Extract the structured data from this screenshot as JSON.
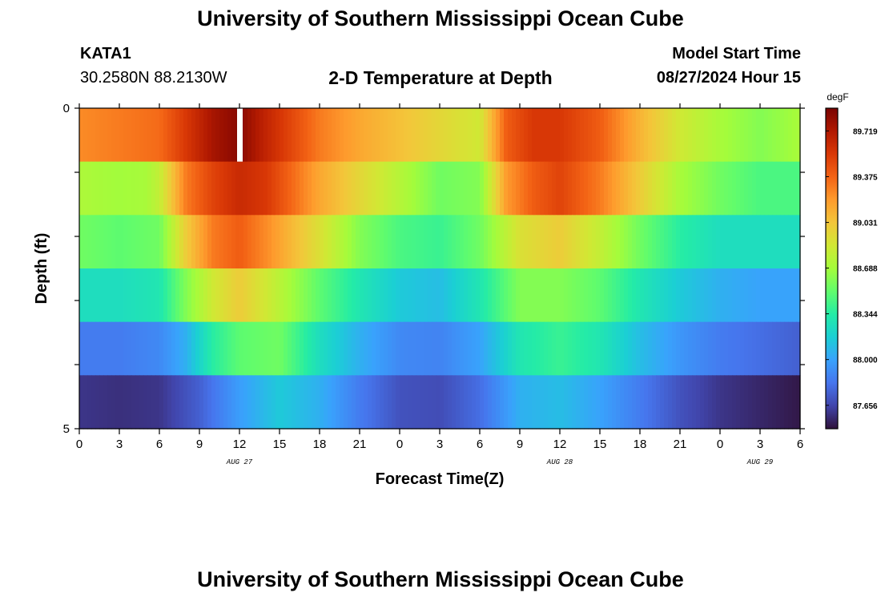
{
  "header": {
    "title": "University of Southern Mississippi Ocean Cube",
    "station": "KATA1",
    "coordinates": "30.2580N  88.2130W",
    "subtitle": "2-D Temperature at Depth",
    "start_label": "Model Start Time",
    "start_value": "08/27/2024 Hour 15"
  },
  "footer": {
    "title": "University of Southern Mississippi Ocean Cube"
  },
  "chart_data": {
    "type": "heatmap",
    "title": "2-D Temperature at Depth",
    "xlabel": "Forecast Time(Z)",
    "ylabel": "Depth (ft)",
    "x_range_hours": [
      0,
      54
    ],
    "y_range": [
      0,
      5
    ],
    "x_tick_labels": [
      "0",
      "3",
      "6",
      "9",
      "12",
      "15",
      "18",
      "21",
      "0",
      "3",
      "6",
      "9",
      "12",
      "15",
      "18",
      "21",
      "0",
      "3",
      "6"
    ],
    "y_tick_labels": [
      "0",
      "5"
    ],
    "date_labels": [
      {
        "label": "AUG 27",
        "hour": 12
      },
      {
        "label": "AUG 28",
        "hour": 36
      },
      {
        "label": "AUG 29",
        "hour": 51
      }
    ],
    "colorbar": {
      "unit": "degF",
      "min": 87.48,
      "max": 89.89,
      "tick_values": [
        "89.719",
        "89.375",
        "89.031",
        "88.688",
        "88.344",
        "88.000",
        "87.656"
      ],
      "colors": [
        "#30123b",
        "#4145ab",
        "#4675ed",
        "#39a2fc",
        "#1bcfd4",
        "#24eca6",
        "#61fc6c",
        "#a4fc3b",
        "#d1e834",
        "#f3c63a",
        "#fe9b2d",
        "#f36315",
        "#d93806",
        "#b11901",
        "#7a0402"
      ]
    },
    "missing_cell": {
      "row": 0,
      "hour": 12
    },
    "rows": [
      {
        "depth_index": 0,
        "keyframes": [
          [
            0,
            89.25
          ],
          [
            3,
            89.3
          ],
          [
            6,
            89.35
          ],
          [
            8,
            89.55
          ],
          [
            10,
            89.75
          ],
          [
            12,
            89.85
          ],
          [
            14,
            89.65
          ],
          [
            18,
            89.3
          ],
          [
            21,
            89.15
          ],
          [
            24,
            89.05
          ],
          [
            27,
            88.95
          ],
          [
            30,
            88.85
          ],
          [
            32,
            89.4
          ],
          [
            34,
            89.55
          ],
          [
            36,
            89.55
          ],
          [
            39,
            89.4
          ],
          [
            42,
            89.1
          ],
          [
            45,
            88.85
          ],
          [
            48,
            88.7
          ],
          [
            51,
            88.6
          ],
          [
            54,
            88.7
          ]
        ]
      },
      {
        "depth_index": 1,
        "keyframes": [
          [
            0,
            88.72
          ],
          [
            3,
            88.68
          ],
          [
            5,
            88.7
          ],
          [
            6,
            88.8
          ],
          [
            8,
            89.3
          ],
          [
            10,
            89.5
          ],
          [
            12,
            89.62
          ],
          [
            14,
            89.55
          ],
          [
            18,
            89.15
          ],
          [
            21,
            88.95
          ],
          [
            24,
            88.75
          ],
          [
            27,
            88.55
          ],
          [
            30,
            88.6
          ],
          [
            32,
            89.2
          ],
          [
            34,
            89.4
          ],
          [
            36,
            89.5
          ],
          [
            39,
            89.3
          ],
          [
            42,
            89.0
          ],
          [
            45,
            88.7
          ],
          [
            48,
            88.55
          ],
          [
            51,
            88.45
          ],
          [
            54,
            88.45
          ]
        ]
      },
      {
        "depth_index": 2,
        "keyframes": [
          [
            0,
            88.55
          ],
          [
            3,
            88.5
          ],
          [
            6,
            88.55
          ],
          [
            8,
            89.0
          ],
          [
            10,
            89.3
          ],
          [
            12,
            89.4
          ],
          [
            14,
            89.25
          ],
          [
            18,
            88.9
          ],
          [
            21,
            88.6
          ],
          [
            24,
            88.45
          ],
          [
            27,
            88.4
          ],
          [
            30,
            88.55
          ],
          [
            33,
            88.9
          ],
          [
            36,
            89.0
          ],
          [
            39,
            88.8
          ],
          [
            42,
            88.55
          ],
          [
            45,
            88.35
          ],
          [
            48,
            88.25
          ],
          [
            51,
            88.25
          ],
          [
            54,
            88.25
          ]
        ]
      },
      {
        "depth_index": 3,
        "keyframes": [
          [
            0,
            88.25
          ],
          [
            3,
            88.25
          ],
          [
            6,
            88.3
          ],
          [
            8,
            88.6
          ],
          [
            10,
            88.85
          ],
          [
            12,
            89.0
          ],
          [
            14,
            88.85
          ],
          [
            18,
            88.5
          ],
          [
            21,
            88.3
          ],
          [
            24,
            88.15
          ],
          [
            27,
            88.1
          ],
          [
            30,
            88.3
          ],
          [
            33,
            88.6
          ],
          [
            36,
            88.6
          ],
          [
            39,
            88.5
          ],
          [
            42,
            88.3
          ],
          [
            45,
            88.15
          ],
          [
            48,
            88.05
          ],
          [
            51,
            88.0
          ],
          [
            54,
            88.0
          ]
        ]
      },
      {
        "depth_index": 4,
        "keyframes": [
          [
            0,
            87.85
          ],
          [
            3,
            87.85
          ],
          [
            6,
            87.9
          ],
          [
            8,
            88.05
          ],
          [
            10,
            88.35
          ],
          [
            12,
            88.5
          ],
          [
            15,
            88.55
          ],
          [
            18,
            88.25
          ],
          [
            21,
            88.05
          ],
          [
            24,
            87.9
          ],
          [
            27,
            87.88
          ],
          [
            30,
            88.0
          ],
          [
            33,
            88.3
          ],
          [
            36,
            88.4
          ],
          [
            39,
            88.3
          ],
          [
            42,
            88.1
          ],
          [
            45,
            87.95
          ],
          [
            48,
            87.85
          ],
          [
            51,
            87.8
          ],
          [
            54,
            87.75
          ]
        ]
      },
      {
        "depth_index": 5,
        "keyframes": [
          [
            0,
            87.6
          ],
          [
            3,
            87.58
          ],
          [
            6,
            87.6
          ],
          [
            9,
            87.75
          ],
          [
            12,
            87.98
          ],
          [
            15,
            88.15
          ],
          [
            18,
            88.05
          ],
          [
            21,
            87.85
          ],
          [
            24,
            87.7
          ],
          [
            27,
            87.68
          ],
          [
            30,
            87.8
          ],
          [
            33,
            88.05
          ],
          [
            36,
            88.1
          ],
          [
            39,
            88.0
          ],
          [
            42,
            87.85
          ],
          [
            45,
            87.7
          ],
          [
            48,
            87.6
          ],
          [
            51,
            87.55
          ],
          [
            54,
            87.5
          ]
        ]
      }
    ]
  }
}
